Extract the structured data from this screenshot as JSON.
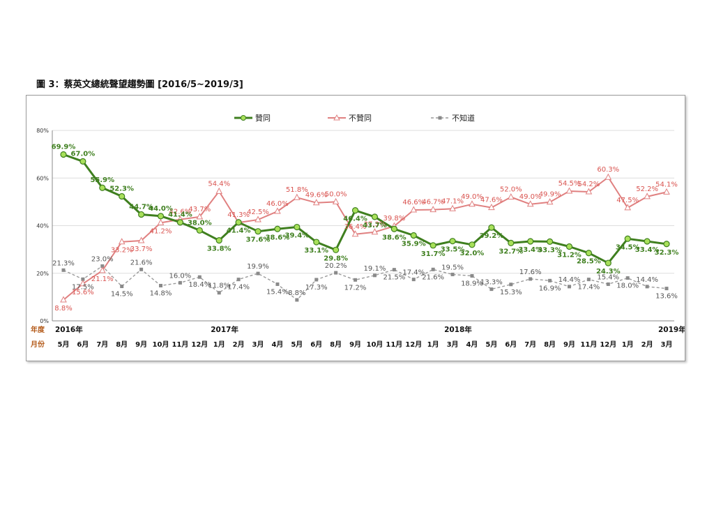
{
  "figure_title": "圖 3：蔡英文總統聲望趨勢圖  [2016/5~2019/3]",
  "colors": {
    "approve": "#3f7f1f",
    "approve_marker": "#a8e05a",
    "disapprove": "#e08080",
    "unknown": "#9a9a9a"
  },
  "chart_data": {
    "type": "line",
    "title": "圖 3：蔡英文總統聲望趨勢圖  [2016/5~2019/3]",
    "ylim": [
      0,
      80
    ],
    "yticks": [
      "0%",
      "20%",
      "40%",
      "60%",
      "80%"
    ],
    "grid": true,
    "legend_position": "top",
    "row_labels": {
      "year": "年度",
      "month": "月份"
    },
    "years": [
      {
        "label": "2016年",
        "index": 0
      },
      {
        "label": "2017年",
        "index": 8
      },
      {
        "label": "2018年",
        "index": 20
      },
      {
        "label": "2019年",
        "index": 31
      }
    ],
    "categories": [
      "5月",
      "6月",
      "7月",
      "8月",
      "9月",
      "10月",
      "11月",
      "12月",
      "1月",
      "2月",
      "3月",
      "4月",
      "5月",
      "6月",
      "8月",
      "9月",
      "10月",
      "11月",
      "12月",
      "1月",
      "3月",
      "4月",
      "5月",
      "6月",
      "7月",
      "8月",
      "9月",
      "11月",
      "12月",
      "1月",
      "2月",
      "3月"
    ],
    "series": [
      {
        "name": "贊同",
        "values": [
          69.9,
          67.0,
          55.9,
          52.3,
          44.7,
          44.0,
          41.4,
          38.0,
          33.8,
          41.4,
          37.6,
          38.6,
          39.4,
          33.1,
          29.8,
          46.4,
          43.7,
          38.6,
          35.9,
          31.7,
          33.5,
          32.0,
          39.2,
          32.7,
          33.4,
          33.3,
          31.2,
          28.5,
          24.3,
          34.5,
          33.4,
          32.3
        ],
        "labels": [
          "69.9%",
          "67.0%",
          "55.9%",
          "52.3%",
          "44.7%",
          "44.0%",
          "41.4%",
          "38.0%",
          "33.8%",
          "41.4%",
          "37.6%",
          "38.6%",
          "39.4%",
          "33.1%",
          "29.8%",
          "46.4%",
          "43.7%",
          "38.6%",
          "35.9%",
          "31.7%",
          "33.5%",
          "32.0%",
          "39.2%",
          "32.7%",
          "33.4%",
          "33.3%",
          "31.2%",
          "28.5%",
          "24.3%",
          "34.5%",
          "33.4%",
          "32.3%"
        ]
      },
      {
        "name": "不贊同",
        "values": [
          8.8,
          15.6,
          21.1,
          33.2,
          33.7,
          41.2,
          42.6,
          43.7,
          54.4,
          41.3,
          42.5,
          46.0,
          51.8,
          49.6,
          50.0,
          36.4,
          37.3,
          39.8,
          46.6,
          46.7,
          47.1,
          49.0,
          47.6,
          52.0,
          49.0,
          49.9,
          54.5,
          54.2,
          60.3,
          47.5,
          52.2,
          54.1
        ],
        "labels": [
          "8.8%",
          "15.6%",
          "21.1%",
          "33.2%",
          "33.7%",
          "41.2%",
          "42.6%",
          "43.7%",
          "54.4%",
          "41.3%",
          "42.5%",
          "46.0%",
          "51.8%",
          "49.6%",
          "50.0%",
          "36.4%",
          "37.3%",
          "39.8%",
          "46.6%",
          "46.7%",
          "47.1%",
          "49.0%",
          "47.6%",
          "52.0%",
          "49.0%",
          "49.9%",
          "54.5%",
          "54.2%",
          "60.3%",
          "47.5%",
          "52.2%",
          "54.1%"
        ]
      },
      {
        "name": "不知道",
        "values": [
          21.3,
          17.5,
          23.0,
          14.5,
          21.6,
          14.8,
          16.0,
          18.4,
          11.8,
          17.4,
          19.9,
          15.4,
          8.8,
          17.3,
          20.2,
          17.2,
          19.1,
          21.5,
          17.4,
          21.6,
          19.5,
          18.9,
          13.3,
          15.3,
          17.6,
          16.9,
          14.4,
          17.4,
          15.4,
          18.0,
          14.4,
          13.6
        ],
        "labels": [
          "21.3%",
          "17.5%",
          "23.0%",
          "14.5%",
          "21.6%",
          "14.8%",
          "16.0%",
          "18.4%",
          "11.8%",
          "17.4%",
          "19.9%",
          "15.4%",
          "8.8%",
          "17.3%",
          "20.2%",
          "17.2%",
          "19.1%",
          "21.5%",
          "17.4%",
          "21.6%",
          "19.5%",
          "18.9%",
          "13.3%",
          "15.3%",
          "17.6%",
          "16.9%",
          "14.4%",
          "17.4%",
          "15.4%",
          "18.0%",
          "14.4%",
          "13.6%"
        ]
      }
    ]
  }
}
